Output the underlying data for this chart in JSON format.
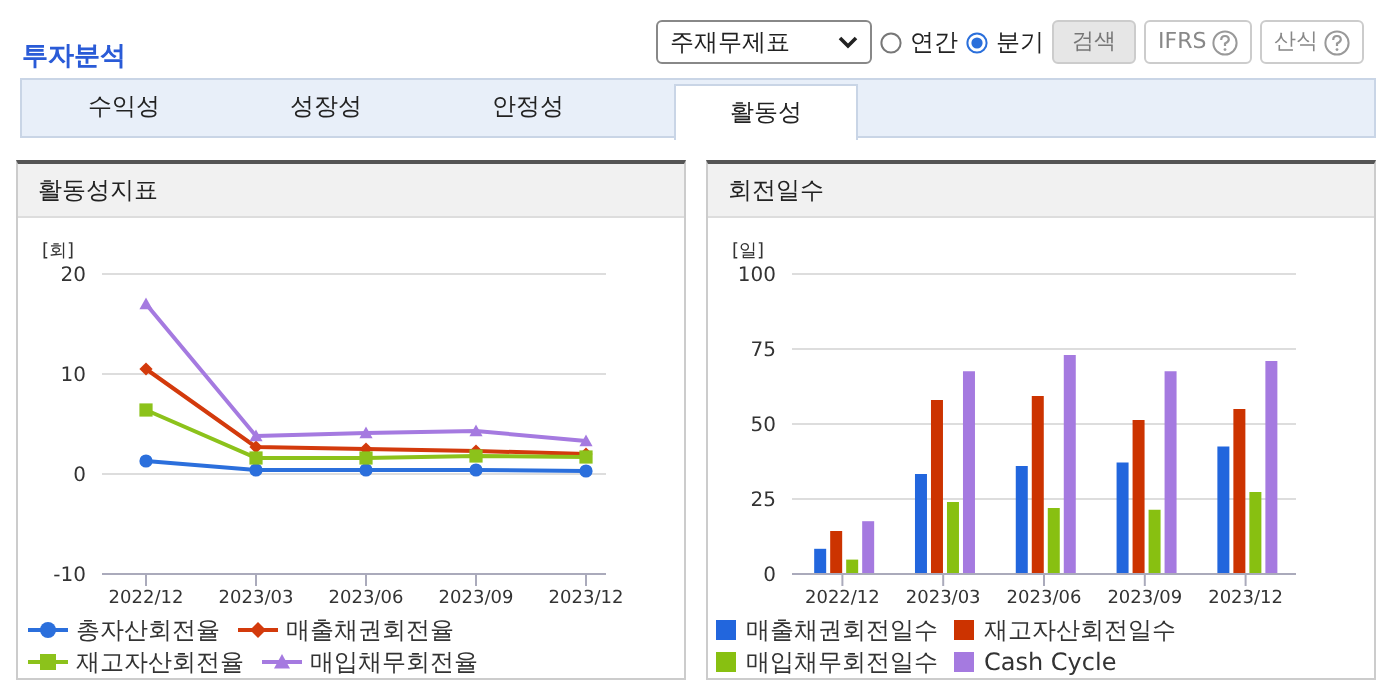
{
  "chart_data": [
    {
      "type": "other",
      "title": "투자분석",
      "annotations": [
        "주재무제표",
        "연간",
        "분기",
        "검색",
        "IFRS",
        "산식",
        "수익성",
        "성장성",
        "안정성",
        "활동성"
      ]
    },
    {
      "type": "line",
      "title": "활동성지표",
      "ylabel": "[회]",
      "categories": [
        "2022/12",
        "2023/03",
        "2023/06",
        "2023/09",
        "2023/12"
      ],
      "ylim": [
        -10,
        20
      ],
      "yticks": [
        -10,
        0,
        10,
        20
      ],
      "grid": "y",
      "legend": "bottom",
      "series": [
        {
          "name": "총자산회전율",
          "color": "#2b6fdc",
          "marker": "circle",
          "values": [
            1.3,
            0.4,
            0.4,
            0.4,
            0.3
          ]
        },
        {
          "name": "매출채권회전율",
          "color": "#d33a0c",
          "marker": "diamond",
          "values": [
            10.5,
            2.7,
            2.5,
            2.3,
            2.0
          ]
        },
        {
          "name": "재고자산회전율",
          "color": "#8cc21b",
          "marker": "square",
          "values": [
            6.4,
            1.6,
            1.6,
            1.8,
            1.7
          ]
        },
        {
          "name": "매입채무회전율",
          "color": "#a57ae0",
          "marker": "triangle",
          "values": [
            17,
            3.8,
            4.1,
            4.3,
            3.3
          ]
        }
      ]
    },
    {
      "type": "bar",
      "title": "회전일수",
      "ylabel": "[일]",
      "categories": [
        "2022/12",
        "2023/03",
        "2023/06",
        "2023/09",
        "2023/12"
      ],
      "ylim": [
        0,
        100
      ],
      "yticks": [
        0,
        25,
        50,
        75,
        100
      ],
      "grid": "y",
      "legend": "bottom",
      "series": [
        {
          "name": "매출채권회전일수",
          "color": "#2266dd",
          "values": [
            8.4,
            33.3,
            36,
            37.2,
            42.5
          ]
        },
        {
          "name": "재고자산회전일수",
          "color": "#cc3300",
          "values": [
            14.3,
            58,
            59.3,
            51.3,
            55
          ]
        },
        {
          "name": "매입채무회전일수",
          "color": "#88c011",
          "values": [
            4.8,
            24,
            22,
            21.4,
            27.3
          ]
        },
        {
          "name": "Cash Cycle",
          "color": "#a57ae0",
          "values": [
            17.6,
            67.6,
            73,
            67.6,
            71
          ]
        }
      ]
    }
  ]
}
